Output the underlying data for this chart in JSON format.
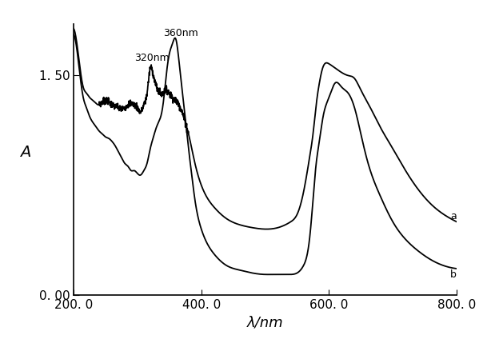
{
  "title": "",
  "xlabel": "λ/nm",
  "ylabel": "A",
  "xlim": [
    200,
    800
  ],
  "ylim": [
    0.0,
    1.85
  ],
  "xticks": [
    200.0,
    400.0,
    600.0,
    800.0
  ],
  "xtick_labels": [
    "200. 0",
    "400. 0",
    "600. 0",
    "800. 0"
  ],
  "yticks": [
    0.0,
    1.5
  ],
  "ytick_labels": [
    "0. 00",
    "1. 50"
  ],
  "annotation_360": "360nm",
  "annotation_320": "320nm",
  "curve_color": "#000000",
  "background": "#ffffff",
  "label_a": "a",
  "label_b": "b",
  "curve_a_x": [
    200,
    205,
    210,
    215,
    220,
    225,
    230,
    235,
    240,
    245,
    250,
    255,
    260,
    265,
    270,
    275,
    280,
    285,
    290,
    295,
    300,
    305,
    310,
    315,
    320,
    325,
    330,
    335,
    340,
    345,
    350,
    355,
    360,
    365,
    370,
    375,
    380,
    390,
    400,
    420,
    440,
    460,
    480,
    500,
    520,
    540,
    550,
    560,
    570,
    575,
    580,
    585,
    590,
    600,
    610,
    620,
    630,
    640,
    650,
    660,
    680,
    700,
    720,
    740,
    760,
    780,
    800
  ],
  "curve_a_y": [
    1.82,
    1.72,
    1.55,
    1.42,
    1.38,
    1.35,
    1.33,
    1.31,
    1.3,
    1.32,
    1.33,
    1.32,
    1.3,
    1.29,
    1.28,
    1.27,
    1.28,
    1.3,
    1.31,
    1.3,
    1.28,
    1.25,
    1.3,
    1.38,
    1.55,
    1.5,
    1.42,
    1.38,
    1.38,
    1.4,
    1.38,
    1.35,
    1.33,
    1.3,
    1.25,
    1.18,
    1.1,
    0.9,
    0.75,
    0.6,
    0.52,
    0.48,
    0.46,
    0.45,
    0.46,
    0.5,
    0.55,
    0.7,
    0.95,
    1.1,
    1.3,
    1.45,
    1.55,
    1.58,
    1.55,
    1.52,
    1.5,
    1.48,
    1.4,
    1.32,
    1.15,
    1.0,
    0.85,
    0.72,
    0.62,
    0.55,
    0.5
  ],
  "curve_b_x": [
    200,
    205,
    210,
    215,
    220,
    225,
    230,
    235,
    240,
    245,
    250,
    255,
    260,
    265,
    270,
    275,
    280,
    285,
    290,
    295,
    300,
    305,
    310,
    315,
    320,
    325,
    330,
    335,
    340,
    345,
    350,
    355,
    360,
    365,
    370,
    375,
    380,
    385,
    390,
    400,
    420,
    440,
    460,
    480,
    500,
    510,
    520,
    530,
    540,
    550,
    560,
    570,
    575,
    580,
    585,
    590,
    600,
    610,
    620,
    630,
    640,
    650,
    660,
    680,
    700,
    720,
    740,
    760,
    780,
    800
  ],
  "curve_b_y": [
    1.78,
    1.68,
    1.5,
    1.35,
    1.28,
    1.22,
    1.18,
    1.15,
    1.12,
    1.1,
    1.08,
    1.07,
    1.05,
    1.02,
    0.98,
    0.94,
    0.9,
    0.88,
    0.85,
    0.85,
    0.83,
    0.82,
    0.85,
    0.9,
    1.0,
    1.08,
    1.15,
    1.2,
    1.3,
    1.5,
    1.65,
    1.72,
    1.75,
    1.6,
    1.4,
    1.2,
    1.0,
    0.82,
    0.65,
    0.45,
    0.28,
    0.2,
    0.17,
    0.15,
    0.14,
    0.14,
    0.14,
    0.14,
    0.14,
    0.15,
    0.2,
    0.4,
    0.65,
    0.9,
    1.05,
    1.2,
    1.35,
    1.45,
    1.42,
    1.38,
    1.28,
    1.1,
    0.92,
    0.68,
    0.5,
    0.38,
    0.3,
    0.24,
    0.2,
    0.18
  ]
}
